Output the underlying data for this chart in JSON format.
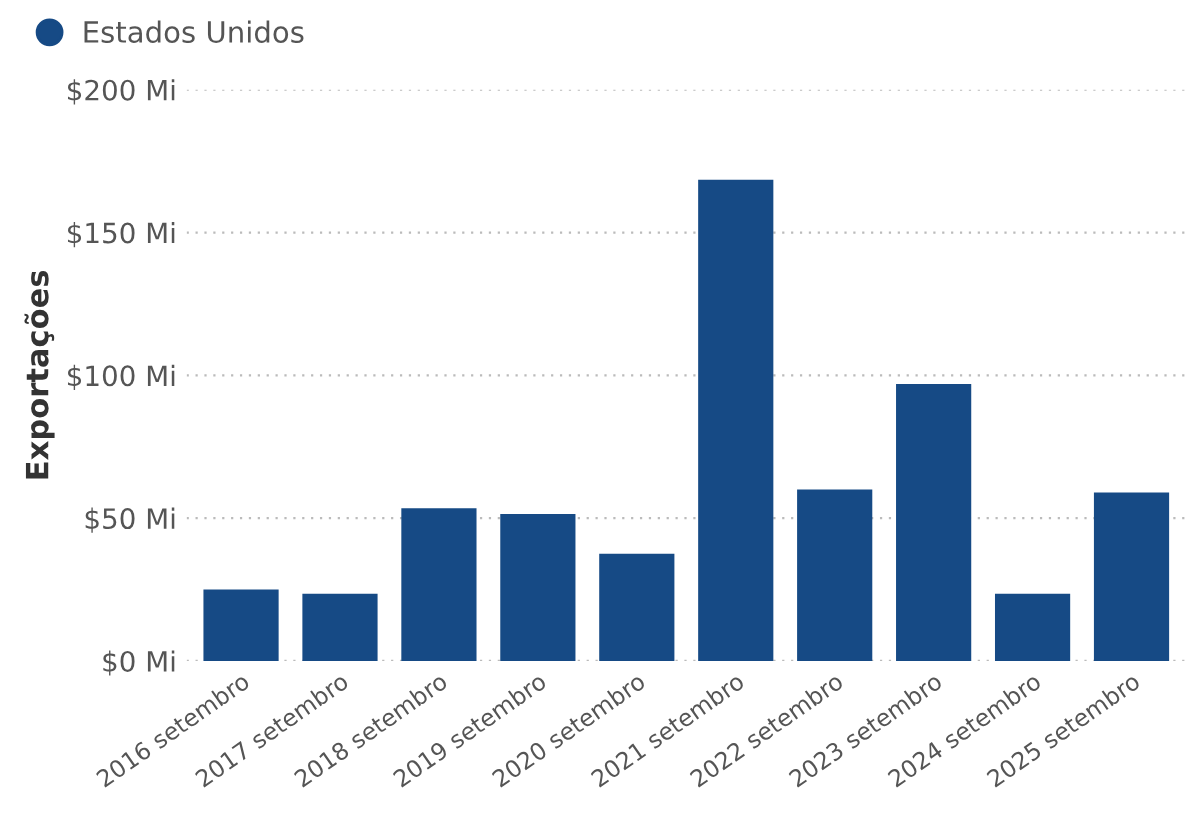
{
  "chart_data": {
    "type": "bar",
    "ylabel": "Exportações",
    "categories": [
      "2016 setembro",
      "2017 setembro",
      "2018 setembro",
      "2019 setembro",
      "2020 setembro",
      "2021 setembro",
      "2022 setembro",
      "2023 setembro",
      "2024 setembro",
      "2025 setembro"
    ],
    "series": [
      {
        "name": "Estados Unidos",
        "color": "#164a85",
        "values": [
          25,
          23.5,
          53.5,
          51.5,
          37.5,
          168.5,
          60,
          97,
          23.5,
          59
        ]
      }
    ],
    "ylim": [
      0,
      200
    ],
    "yticks": [
      {
        "value": 0,
        "label": "$0 Mi"
      },
      {
        "value": 50,
        "label": "$50 Mi"
      },
      {
        "value": 100,
        "label": "$100 Mi"
      },
      {
        "value": 150,
        "label": "$150 Mi"
      },
      {
        "value": 200,
        "label": "$200 Mi"
      }
    ],
    "grid": "y",
    "legend": "top left"
  }
}
